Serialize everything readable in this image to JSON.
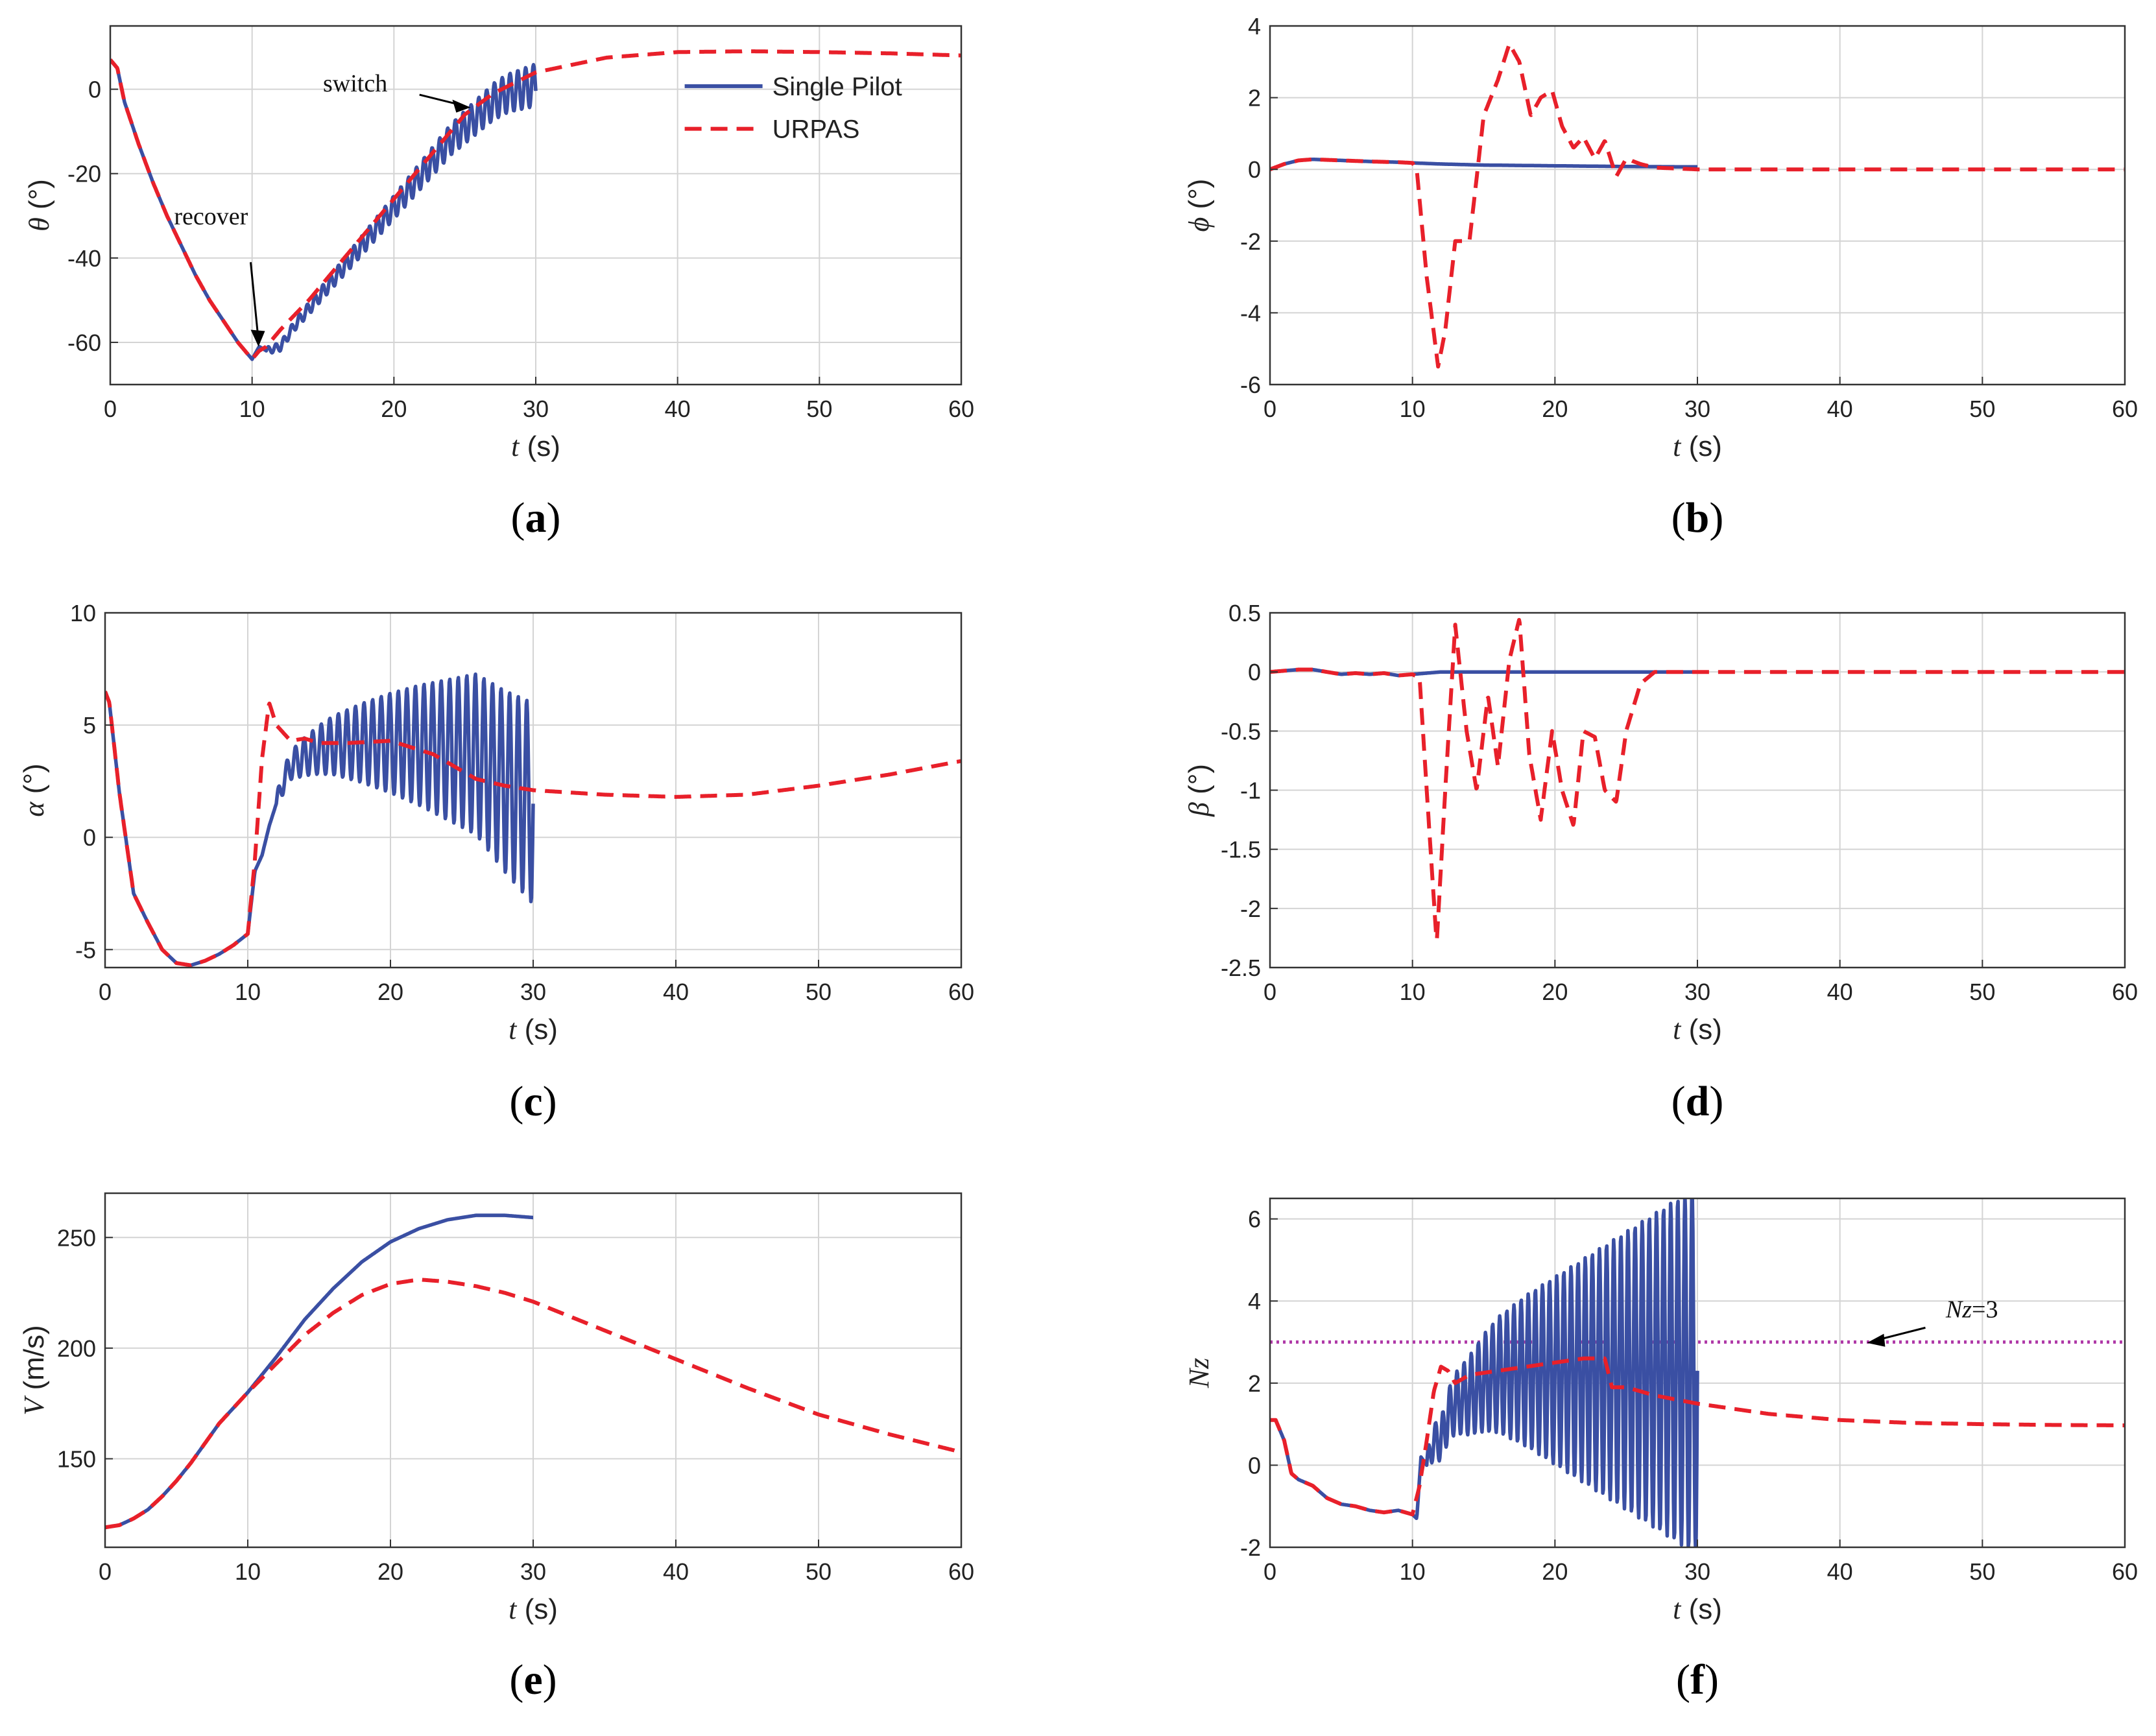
{
  "colors": {
    "single_pilot": "#3a4fa3",
    "urpas": "#e8202a",
    "nz_limit": "#b03aa8",
    "grid": "#d4d4d4",
    "axis": "#333333"
  },
  "legend": {
    "entries": [
      "Single Pilot",
      "URPAS"
    ],
    "placement": "top-right of panel (a)"
  },
  "chart_data": [
    {
      "id": "a",
      "type": "line",
      "caption": "a",
      "xlabel": "t",
      "xunit": "(s)",
      "ylabel": "θ",
      "yunit": "(°)",
      "xlim": [
        0,
        60
      ],
      "ylim": [
        -70,
        15
      ],
      "xticks": [
        "0",
        "10",
        "20",
        "30",
        "40",
        "50",
        "60"
      ],
      "yticks": [
        "-60",
        "-40",
        "-20",
        "0"
      ],
      "ytick_values": [
        -60,
        -40,
        -20,
        0
      ],
      "grid": true,
      "annotations": [
        {
          "text": "recover",
          "x": 10.4,
          "y": -62
        },
        {
          "text": "switch",
          "x": 25,
          "y": -2
        }
      ],
      "series": [
        {
          "name": "Single Pilot",
          "x": [
            0,
            0.5,
            1,
            2,
            3,
            4,
            5,
            6,
            7,
            8,
            9,
            10,
            10.5,
            11,
            12,
            13,
            14,
            15,
            16,
            17,
            18,
            19,
            20,
            21,
            22,
            23,
            24,
            25,
            26,
            27,
            28,
            29,
            30
          ],
          "y": [
            7,
            5,
            -3,
            -13,
            -22,
            -30,
            -37,
            -44,
            -50,
            -55,
            -60,
            -64,
            -61,
            -62,
            -61,
            -56,
            -52,
            -48,
            -44,
            -40,
            -36,
            -32,
            -28,
            -24,
            -20,
            -16,
            -12,
            -9,
            -6,
            -3,
            -1,
            0,
            1
          ],
          "osc_start": 11,
          "osc_end": 30,
          "osc_amp_start": 0.8,
          "osc_amp_end": 5,
          "osc_period": 0.55
        },
        {
          "name": "URPAS",
          "x": [
            0,
            0.5,
            1,
            2,
            3,
            4,
            5,
            6,
            7,
            8,
            9,
            10,
            10.5,
            11,
            12,
            14,
            16,
            18,
            20,
            22,
            24,
            25,
            27,
            30,
            35,
            40,
            45,
            50,
            55,
            60
          ],
          "y": [
            7,
            5,
            -3,
            -13,
            -22,
            -30,
            -37,
            -44,
            -50,
            -55,
            -60,
            -64,
            -62,
            -61,
            -57,
            -50,
            -42,
            -34,
            -26,
            -18,
            -10,
            -6,
            -1,
            4,
            7.5,
            8.8,
            9,
            8.8,
            8.5,
            8
          ]
        }
      ]
    },
    {
      "id": "b",
      "type": "line",
      "caption": "b",
      "xlabel": "t",
      "xunit": "(s)",
      "ylabel": "ϕ",
      "yunit": "(°)",
      "xlim": [
        0,
        60
      ],
      "ylim": [
        -6,
        4
      ],
      "xticks": [
        "0",
        "10",
        "20",
        "30",
        "40",
        "50",
        "60"
      ],
      "yticks": [
        "-6",
        "-4",
        "-2",
        "0",
        "2",
        "4"
      ],
      "ytick_values": [
        -6,
        -4,
        -2,
        0,
        2,
        4
      ],
      "grid": true,
      "series": [
        {
          "name": "Single Pilot",
          "x": [
            0,
            1,
            2,
            3,
            5,
            7,
            9,
            10,
            12,
            15,
            20,
            25,
            30
          ],
          "y": [
            0,
            0.15,
            0.25,
            0.28,
            0.25,
            0.22,
            0.2,
            0.18,
            0.15,
            0.12,
            0.1,
            0.08,
            0.07
          ]
        },
        {
          "name": "URPAS",
          "x": [
            0,
            1,
            2,
            3,
            5,
            7,
            9,
            10,
            10.3,
            11,
            11.8,
            12.3,
            13,
            14,
            15,
            16,
            16.8,
            17.5,
            18.3,
            19,
            19.8,
            20.5,
            21.3,
            22,
            22.8,
            23.5,
            24.3,
            25,
            26,
            27,
            30,
            35,
            60
          ],
          "y": [
            0,
            0.15,
            0.25,
            0.28,
            0.25,
            0.22,
            0.2,
            0.18,
            0.0,
            -3,
            -5.5,
            -4.5,
            -2,
            -2,
            1.5,
            2.5,
            3.5,
            3,
            1.5,
            2,
            2.2,
            1.2,
            0.6,
            0.9,
            0.3,
            0.8,
            -0.2,
            0.3,
            0.15,
            0.05,
            0,
            0,
            0
          ]
        }
      ]
    },
    {
      "id": "c",
      "type": "line",
      "caption": "c",
      "xlabel": "t",
      "xunit": "(s)",
      "ylabel": "α",
      "yunit": "(°)",
      "xlim": [
        0,
        60
      ],
      "ylim": [
        -5.8,
        10
      ],
      "xticks": [
        "0",
        "10",
        "20",
        "30",
        "40",
        "50",
        "60"
      ],
      "yticks": [
        "-5",
        "0",
        "5",
        "10"
      ],
      "ytick_values": [
        -5,
        0,
        5,
        10
      ],
      "grid": true,
      "series": [
        {
          "name": "Single Pilot",
          "x": [
            0,
            0.3,
            1,
            2,
            3,
            4,
            5,
            6,
            7,
            8,
            9,
            10,
            10.5,
            11,
            11.5,
            12,
            12.5,
            13,
            14,
            15,
            16,
            18,
            20,
            22,
            24,
            26,
            28,
            30
          ],
          "y": [
            6.5,
            6,
            2,
            -2.5,
            -3.8,
            -5,
            -5.6,
            -5.7,
            -5.5,
            -5.2,
            -4.8,
            -4.3,
            -1.5,
            -0.8,
            0.5,
            1.5,
            2.5,
            3.2,
            3.6,
            3.9,
            4.1,
            4.2,
            4.2,
            4.1,
            3.9,
            3.7,
            2.5,
            1.5
          ],
          "osc_start": 12,
          "osc_end": 30,
          "osc_amp_start": 0.4,
          "osc_amp_end": 4.5,
          "osc_period": 0.6
        },
        {
          "name": "URPAS",
          "x": [
            0,
            0.3,
            1,
            2,
            3,
            4,
            5,
            6,
            7,
            8,
            9,
            10,
            10.5,
            11,
            11.5,
            12,
            13,
            14,
            15,
            17,
            20,
            23,
            26,
            28,
            30,
            35,
            40,
            45,
            50,
            55,
            60
          ],
          "y": [
            6.5,
            6,
            2,
            -2.5,
            -3.8,
            -5,
            -5.6,
            -5.7,
            -5.5,
            -5.2,
            -4.8,
            -4.3,
            -1,
            3.5,
            6,
            5,
            4.3,
            4.4,
            4.2,
            4.2,
            4.3,
            3.7,
            2.6,
            2.3,
            2.1,
            1.9,
            1.8,
            1.9,
            2.3,
            2.8,
            3.4
          ]
        }
      ]
    },
    {
      "id": "d",
      "type": "line",
      "caption": "d",
      "xlabel": "t",
      "xunit": "(s)",
      "ylabel": "β",
      "yunit": "(°)",
      "xlim": [
        0,
        60
      ],
      "ylim": [
        -2.5,
        0.5
      ],
      "xticks": [
        "0",
        "10",
        "20",
        "30",
        "40",
        "50",
        "60"
      ],
      "yticks": [
        "-2.5",
        "-2",
        "-1.5",
        "-1",
        "-0.5",
        "0",
        "0.5"
      ],
      "ytick_values": [
        -2.5,
        -2,
        -1.5,
        -1,
        -0.5,
        0,
        0.5
      ],
      "grid": true,
      "series": [
        {
          "name": "Single Pilot",
          "x": [
            0,
            1,
            2,
            3,
            4,
            5,
            6,
            7,
            8,
            9,
            10,
            11,
            12,
            15,
            20,
            25,
            30
          ],
          "y": [
            0,
            0.01,
            0.02,
            0.02,
            0.0,
            -0.02,
            -0.01,
            -0.02,
            -0.01,
            -0.03,
            -0.02,
            -0.01,
            0,
            0,
            0,
            0,
            0
          ]
        },
        {
          "name": "URPAS",
          "x": [
            0,
            1,
            2,
            3,
            4,
            5,
            6,
            7,
            8,
            9,
            10,
            10.5,
            11,
            11.7,
            12.3,
            13,
            13.8,
            14.5,
            15.3,
            16,
            16.8,
            17.5,
            18.2,
            19,
            19.8,
            20.5,
            21.3,
            22,
            22.8,
            23.5,
            24.3,
            25,
            26,
            27,
            28,
            30,
            35,
            60
          ],
          "y": [
            0,
            0.01,
            0.02,
            0.02,
            0.0,
            -0.02,
            -0.01,
            -0.02,
            -0.01,
            -0.03,
            -0.02,
            -0.05,
            -1.0,
            -2.3,
            -1.0,
            0.4,
            -0.5,
            -1.0,
            -0.2,
            -0.8,
            0.1,
            0.45,
            -0.7,
            -1.25,
            -0.5,
            -1.0,
            -1.3,
            -0.5,
            -0.55,
            -1.0,
            -1.1,
            -0.5,
            -0.1,
            0,
            0,
            0,
            0,
            0
          ]
        }
      ]
    },
    {
      "id": "e",
      "type": "line",
      "caption": "e",
      "xlabel": "t",
      "xunit": "(s)",
      "ylabel": "V",
      "yunit": "(m/s)",
      "xlim": [
        0,
        60
      ],
      "ylim": [
        110,
        270
      ],
      "xticks": [
        "0",
        "10",
        "20",
        "30",
        "40",
        "50",
        "60"
      ],
      "yticks": [
        "150",
        "200",
        "250"
      ],
      "ytick_values": [
        150,
        200,
        250
      ],
      "grid": true,
      "series": [
        {
          "name": "Single Pilot",
          "x": [
            0,
            1,
            2,
            3,
            4,
            5,
            6,
            7,
            8,
            9,
            10,
            12,
            14,
            16,
            18,
            20,
            22,
            24,
            26,
            28,
            30
          ],
          "y": [
            119,
            120,
            123,
            127,
            133,
            140,
            148,
            157,
            166,
            173,
            180,
            196,
            213,
            227,
            239,
            248,
            254,
            258,
            260,
            260,
            259
          ]
        },
        {
          "name": "URPAS",
          "x": [
            0,
            1,
            2,
            3,
            4,
            5,
            6,
            7,
            8,
            9,
            10,
            12,
            14,
            16,
            18,
            20,
            22,
            24,
            26,
            28,
            30,
            35,
            40,
            45,
            50,
            55,
            60
          ],
          "y": [
            119,
            120,
            123,
            127,
            133,
            140,
            148,
            157,
            166,
            173,
            180,
            193,
            206,
            216,
            224,
            229,
            231,
            230,
            228,
            225,
            221,
            208,
            195,
            182,
            170,
            161,
            153
          ]
        }
      ]
    },
    {
      "id": "f",
      "type": "line",
      "caption": "f",
      "xlabel": "t",
      "xunit": "(s)",
      "ylabel": "Nz",
      "yunit": "",
      "xlim": [
        0,
        60
      ],
      "ylim": [
        -2,
        6.5
      ],
      "xticks": [
        "0",
        "10",
        "20",
        "30",
        "40",
        "50",
        "60"
      ],
      "yticks": [
        "-2",
        "0",
        "2",
        "4",
        "6"
      ],
      "ytick_values": [
        -2,
        0,
        2,
        4,
        6
      ],
      "grid": true,
      "annotations": [
        {
          "text_italic": "Nz",
          "text": "=3",
          "x": 46,
          "y": 3.6
        }
      ],
      "reference_line": {
        "label": "Nz=3",
        "y": 3
      },
      "series": [
        {
          "name": "Single Pilot",
          "x": [
            0,
            0.4,
            1,
            1.5,
            2,
            3,
            4,
            5,
            6,
            7,
            8,
            9,
            10,
            10.3,
            10.6,
            11,
            11.5,
            12,
            12.5,
            13,
            14,
            15,
            16,
            18,
            20,
            22,
            24,
            26,
            28,
            30
          ],
          "y": [
            1.1,
            1.1,
            0.6,
            -0.2,
            -0.35,
            -0.5,
            -0.8,
            -0.95,
            -1.0,
            -1.1,
            -1.15,
            -1.1,
            -1.2,
            -1.3,
            0.2,
            0.0,
            0.6,
            0.6,
            1.2,
            1.5,
            1.7,
            2.0,
            2.2,
            2.3,
            2.3,
            2.3,
            2.3,
            2.3,
            2.3,
            2.3
          ],
          "osc_start": 11,
          "osc_end": 30,
          "osc_amp_start": 0.3,
          "osc_amp_end": 4.5,
          "osc_period": 0.5
        },
        {
          "name": "URPAS",
          "x": [
            0,
            0.4,
            1,
            1.5,
            2,
            3,
            4,
            5,
            6,
            7,
            8,
            9,
            10,
            10.5,
            11,
            11.5,
            12,
            12.5,
            13,
            14,
            16,
            18,
            20,
            22,
            23.5,
            24,
            25,
            27,
            30,
            35,
            40,
            45,
            50,
            55,
            60
          ],
          "y": [
            1.1,
            1.1,
            0.6,
            -0.2,
            -0.35,
            -0.5,
            -0.8,
            -0.95,
            -1.0,
            -1.1,
            -1.15,
            -1.1,
            -1.2,
            -0.5,
            0.6,
            1.8,
            2.4,
            2.3,
            2.0,
            2.2,
            2.3,
            2.4,
            2.5,
            2.6,
            2.6,
            1.9,
            1.9,
            1.7,
            1.5,
            1.25,
            1.1,
            1.03,
            1.0,
            0.98,
            0.97
          ]
        }
      ]
    }
  ]
}
